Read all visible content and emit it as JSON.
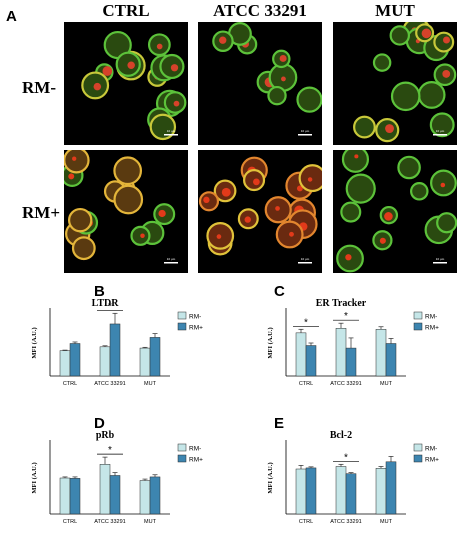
{
  "figure": {
    "panel_a": {
      "letter": "A",
      "columns": [
        "CTRL",
        "ATCC 33291",
        "MUT"
      ],
      "rows": [
        "RM-",
        "RM+"
      ],
      "scale_bar": "10 µm"
    }
  },
  "colors": {
    "rm_minus": "#c5e6e8",
    "rm_plus": "#3d85b0",
    "bar_edge": "#2a2a2a"
  },
  "chart_data": [
    {
      "letter": "B",
      "type": "bar",
      "title": "LTDR",
      "ylabel": "MFI (A.U.)",
      "categories": [
        "CTRL",
        "ATCC 33291",
        "MUT"
      ],
      "ylim": [
        0,
        260
      ],
      "series": [
        {
          "name": "RM-",
          "values": [
            100,
            115,
            110
          ],
          "err": [
            2,
            4,
            3
          ]
        },
        {
          "name": "RM+",
          "values": [
            128,
            205,
            152
          ],
          "err": [
            6,
            42,
            15
          ]
        }
      ],
      "significance": [
        {
          "category": 1,
          "label": "*"
        }
      ],
      "legend": "right"
    },
    {
      "letter": "C",
      "type": "bar",
      "title": "ER Tracker",
      "ylabel": "MFI (A.U.)",
      "categories": [
        "CTRL",
        "ATCC 33291",
        "MUT"
      ],
      "ylim": [
        0,
        130
      ],
      "series": [
        {
          "name": "RM-",
          "values": [
            85,
            94,
            92
          ],
          "err": [
            7,
            10,
            5
          ]
        },
        {
          "name": "RM+",
          "values": [
            60,
            55,
            64
          ],
          "err": [
            5,
            20,
            10
          ]
        }
      ],
      "significance": [
        {
          "category": 0,
          "label": "*"
        },
        {
          "category": 1,
          "label": "*"
        }
      ],
      "legend": "right"
    },
    {
      "letter": "D",
      "type": "bar",
      "title": "pRb",
      "ylabel": "MFI (A.U.)",
      "categories": [
        "CTRL",
        "ATCC 33291",
        "MUT"
      ],
      "ylim": [
        0,
        200
      ],
      "series": [
        {
          "name": "RM-",
          "values": [
            100,
            138,
            93
          ],
          "err": [
            3,
            20,
            4
          ]
        },
        {
          "name": "RM+",
          "values": [
            99,
            107,
            103
          ],
          "err": [
            4,
            8,
            6
          ]
        }
      ],
      "significance": [
        {
          "category": 1,
          "label": "*"
        }
      ],
      "legend": "right"
    },
    {
      "letter": "E",
      "type": "bar",
      "title": "Bcl-2",
      "ylabel": "MFI (A.U.)",
      "categories": [
        "CTRL",
        "ATCC 33291",
        "MUT"
      ],
      "ylim": [
        0,
        200
      ],
      "series": [
        {
          "name": "RM-",
          "values": [
            125,
            132,
            127
          ],
          "err": [
            10,
            6,
            5
          ]
        },
        {
          "name": "RM+",
          "values": [
            128,
            112,
            145
          ],
          "err": [
            3,
            3,
            15
          ]
        }
      ],
      "significance": [
        {
          "category": 1,
          "label": "*"
        }
      ],
      "legend": "right"
    }
  ]
}
